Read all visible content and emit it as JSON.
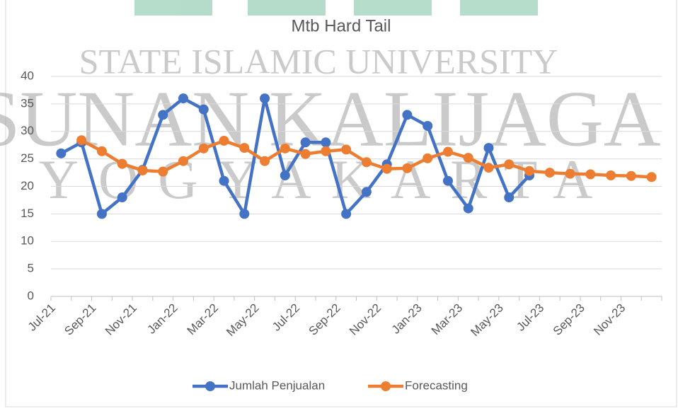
{
  "chart_data": {
    "type": "line",
    "title": "Mtb Hard Tail",
    "watermark": [
      "STATE ISLAMIC UNIVERSITY",
      "SUNAN KALIJAGA",
      "YOGYAKARTA"
    ],
    "categories": [
      "Jul-21",
      null,
      "Sep-21",
      null,
      "Nov-21",
      null,
      "Jan-22",
      null,
      "Mar-22",
      null,
      "May-22",
      null,
      "Jul-22",
      null,
      "Sep-22",
      null,
      "Nov-22",
      null,
      "Jan-23",
      null,
      "Mar-23",
      null,
      "May-23",
      null,
      "Jul-23",
      null,
      "Sep-23",
      null,
      "Nov-23",
      null
    ],
    "series": [
      {
        "name": "Jumlah Penjualan",
        "color": "#4472c4",
        "values": [
          26,
          28,
          15,
          18,
          23,
          33,
          36,
          34,
          21,
          15,
          36,
          22,
          28,
          28,
          15,
          19,
          24,
          33,
          31,
          21,
          16,
          27,
          18,
          22,
          null,
          null,
          null,
          null,
          null,
          null
        ]
      },
      {
        "name": "Forecasting",
        "color": "#ed7d31",
        "values": [
          null,
          28.4,
          26.4,
          24.1,
          22.9,
          22.7,
          24.6,
          26.9,
          28.3,
          27.0,
          24.6,
          26.9,
          25.9,
          26.4,
          26.7,
          24.4,
          23.2,
          23.3,
          25.1,
          26.3,
          25.2,
          23.4,
          24.0,
          22.8,
          22.5,
          22.3,
          22.2,
          22.0,
          21.9,
          21.7
        ]
      }
    ],
    "ylim": [
      0,
      40
    ],
    "yticks": [
      0,
      5,
      10,
      15,
      20,
      25,
      30,
      35,
      40
    ],
    "grid": true,
    "legend": "bottom"
  }
}
